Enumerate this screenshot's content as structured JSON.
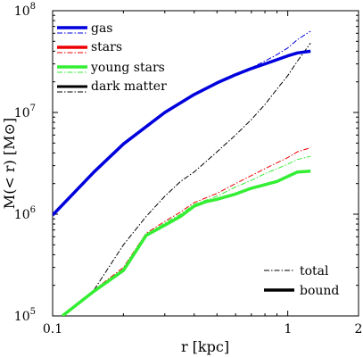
{
  "chart_data": {
    "type": "line",
    "xscale": "log",
    "yscale": "log",
    "xlim": [
      0.1,
      2
    ],
    "ylim": [
      100000,
      100000000
    ],
    "xlabel": "r [kpc]",
    "ylabel": "M(< r) [M⊙]",
    "x_ticks": [
      {
        "value": 0.1,
        "label": "0.1"
      },
      {
        "value": 1,
        "label": "1"
      },
      {
        "value": 2,
        "label": "2"
      }
    ],
    "y_ticks": [
      {
        "value": 100000,
        "base": "10",
        "exp": "5"
      },
      {
        "value": 1000000,
        "base": "10",
        "exp": "6"
      },
      {
        "value": 10000000,
        "base": "10",
        "exp": "7"
      },
      {
        "value": 100000000,
        "base": "10",
        "exp": "8"
      }
    ],
    "grid": false,
    "legend_position": "top-left",
    "style_legend_position": "bottom-right",
    "style_legend": [
      {
        "label": "total",
        "style": "dashdot"
      },
      {
        "label": "bound",
        "style": "solid"
      }
    ],
    "series": [
      {
        "name": "gas",
        "color": "#0000dd",
        "total": {
          "x": [
            0.1,
            0.15,
            0.2,
            0.3,
            0.4,
            0.5,
            0.6,
            0.7,
            0.8,
            0.9,
            1.0,
            1.1,
            1.25
          ],
          "y": [
            980000,
            2600000,
            4900000,
            10000000,
            15000000,
            19500000,
            23500000,
            27500000,
            32000000,
            37000000,
            43000000,
            52000000,
            63000000
          ]
        },
        "bound": {
          "x": [
            0.1,
            0.15,
            0.2,
            0.3,
            0.4,
            0.5,
            0.6,
            0.7,
            0.8,
            0.9,
            1.0,
            1.1,
            1.25
          ],
          "y": [
            980000,
            2600000,
            4900000,
            10000000,
            15000000,
            19500000,
            23500000,
            27000000,
            30000000,
            33000000,
            36000000,
            38500000,
            40000000
          ]
        }
      },
      {
        "name": "stars",
        "color": "#ee0000",
        "total": {
          "x": [
            0.11,
            0.15,
            0.2,
            0.25,
            0.3,
            0.35,
            0.4,
            0.5,
            0.6,
            0.7,
            0.8,
            0.9,
            1.0,
            1.1,
            1.25
          ],
          "y": [
            100000,
            180000,
            300000,
            650000,
            850000,
            1050000,
            1300000,
            1600000,
            2000000,
            2400000,
            2800000,
            3200000,
            3600000,
            4100000,
            4500000
          ]
        }
      },
      {
        "name": "young stars",
        "color": "#33ee33",
        "total": {
          "x": [
            0.11,
            0.15,
            0.2,
            0.25,
            0.3,
            0.35,
            0.4,
            0.5,
            0.6,
            0.7,
            0.8,
            0.9,
            1.0,
            1.1,
            1.25
          ],
          "y": [
            100000,
            175000,
            290000,
            630000,
            820000,
            1000000,
            1250000,
            1500000,
            1850000,
            2150000,
            2500000,
            2800000,
            3100000,
            3450000,
            3700000
          ]
        },
        "bound": {
          "x": [
            0.11,
            0.15,
            0.2,
            0.25,
            0.3,
            0.35,
            0.4,
            0.45,
            0.5,
            0.6,
            0.7,
            0.8,
            0.9,
            1.0,
            1.1,
            1.25
          ],
          "y": [
            100000,
            175000,
            280000,
            620000,
            780000,
            950000,
            1200000,
            1330000,
            1400000,
            1580000,
            1800000,
            1950000,
            2100000,
            2350000,
            2600000,
            2650000
          ]
        }
      },
      {
        "name": "dark matter",
        "color": "#000000",
        "total": {
          "x": [
            0.15,
            0.2,
            0.25,
            0.3,
            0.35,
            0.4,
            0.45,
            0.5,
            0.6,
            0.7,
            0.8,
            0.9,
            1.0,
            1.1,
            1.25
          ],
          "y": [
            180000,
            500000,
            950000,
            1500000,
            2100000,
            2600000,
            3300000,
            4100000,
            6000000,
            8500000,
            12000000,
            17000000,
            23000000,
            32000000,
            48000000
          ]
        }
      }
    ]
  }
}
